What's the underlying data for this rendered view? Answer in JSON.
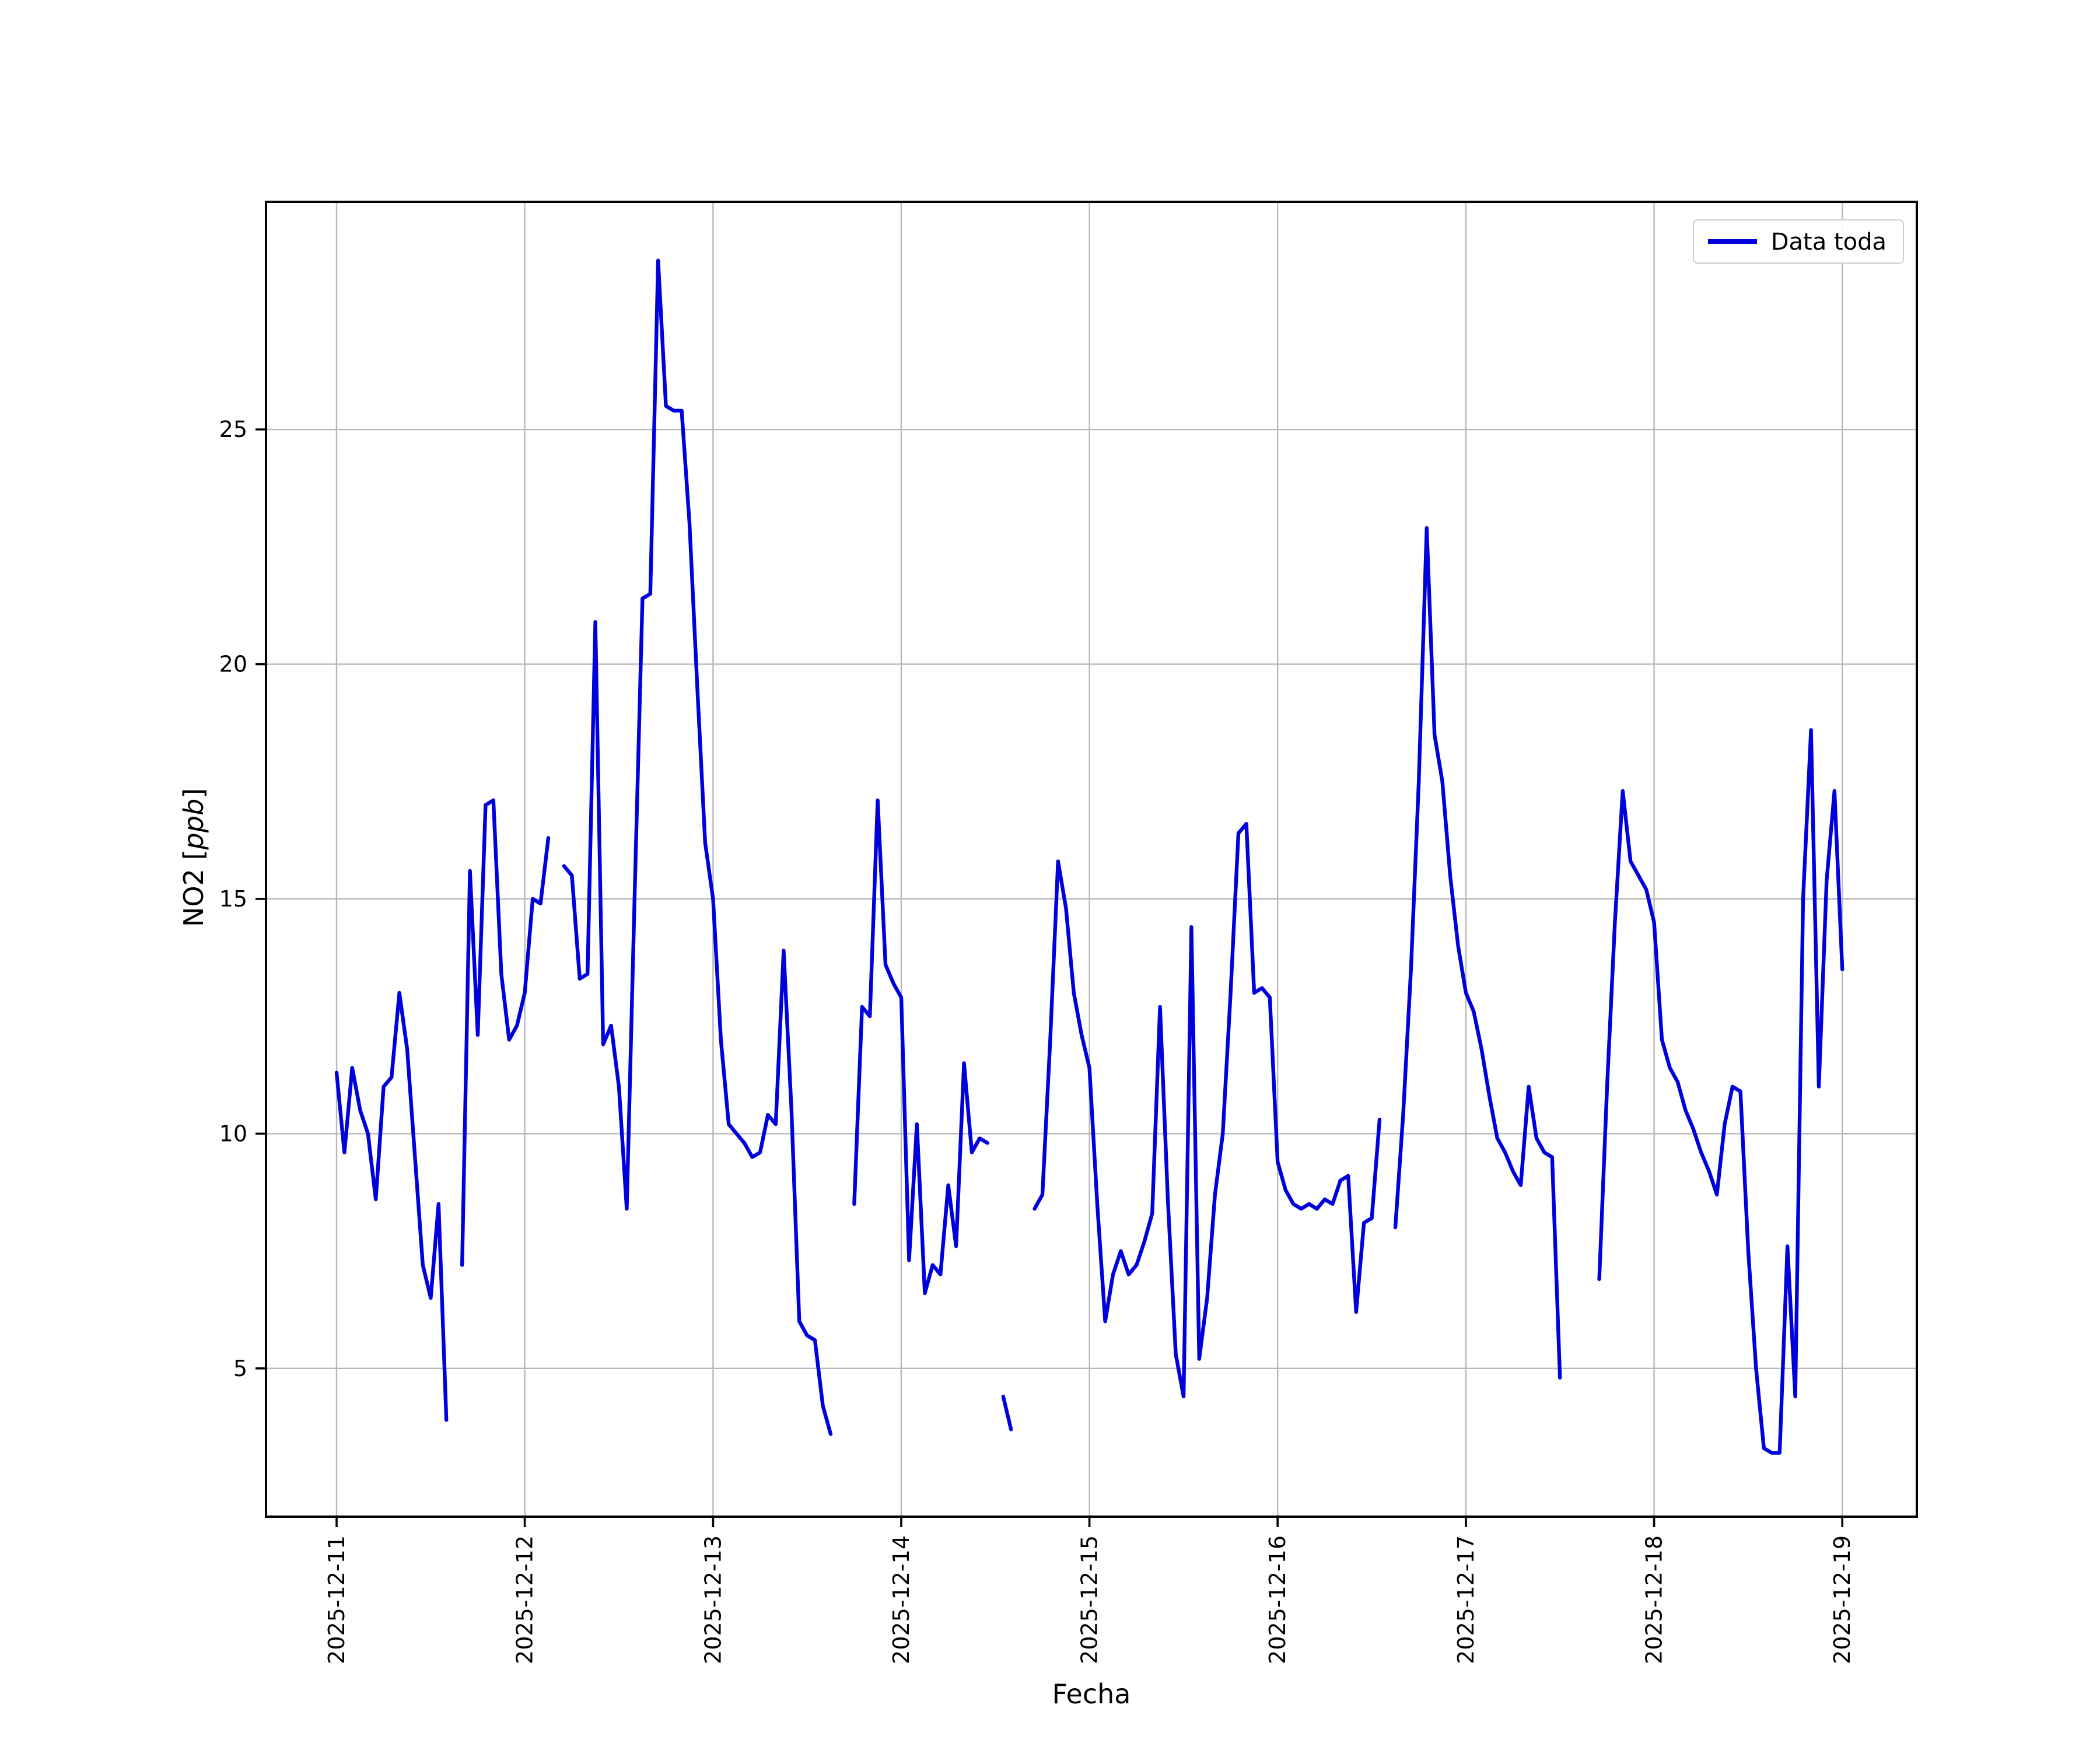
{
  "figure": {
    "xlabel": "Fecha",
    "ylabel_prefix": "NO2 [",
    "ylabel_italic": "ppb",
    "ylabel_suffix": "]",
    "legend": {
      "label": "Data toda"
    }
  },
  "chart_data": {
    "type": "line",
    "title": "",
    "xlabel": "Fecha",
    "ylabel": "NO2 [ppb]",
    "grid": true,
    "legend_position": "upper right",
    "line_color": "#0000dd",
    "grid_color": "#b8b8b8",
    "frame_color": "#000000",
    "x_start": "2025-12-11 00:00",
    "x_freq_hours": 1,
    "x_tick_hours": [
      0,
      24,
      48,
      72,
      96,
      120,
      144,
      168,
      192
    ],
    "x_tick_labels": [
      "2025-12-11",
      "2025-12-12",
      "2025-12-13",
      "2025-12-14",
      "2025-12-15",
      "2025-12-16",
      "2025-12-17",
      "2025-12-18",
      "2025-12-19"
    ],
    "yticks": [
      5,
      10,
      15,
      20,
      25
    ],
    "ylim": [
      1.84,
      29.85
    ],
    "xlim_hours": [
      -9,
      201.5
    ],
    "series": [
      {
        "name": "Data toda",
        "values": [
          11.3,
          9.6,
          11.4,
          10.5,
          10.0,
          8.6,
          11.0,
          11.2,
          13.0,
          11.8,
          9.5,
          7.2,
          6.5,
          8.5,
          3.9,
          null,
          7.2,
          15.6,
          12.1,
          17.0,
          17.1,
          13.4,
          12.0,
          12.3,
          13.0,
          15.0,
          14.9,
          16.3,
          null,
          15.7,
          15.5,
          13.3,
          13.4,
          20.9,
          11.9,
          12.3,
          11.0,
          8.4,
          15.0,
          21.4,
          21.5,
          28.6,
          25.5,
          25.4,
          25.4,
          23.0,
          19.5,
          16.2,
          15.0,
          12.0,
          10.2,
          10.0,
          9.8,
          9.5,
          9.6,
          10.4,
          10.2,
          13.9,
          10.5,
          6.0,
          5.7,
          5.6,
          4.2,
          3.6,
          null,
          null,
          8.5,
          12.7,
          12.5,
          17.1,
          13.6,
          13.2,
          12.9,
          7.3,
          10.2,
          6.6,
          7.2,
          7.0,
          8.9,
          7.6,
          11.5,
          9.6,
          9.9,
          9.8,
          null,
          4.4,
          3.7,
          null,
          null,
          8.4,
          8.7,
          12.0,
          15.8,
          14.8,
          13.0,
          12.1,
          11.4,
          8.5,
          6.0,
          7.0,
          7.5,
          7.0,
          7.2,
          7.7,
          8.3,
          12.7,
          8.6,
          5.3,
          4.4,
          14.4,
          5.2,
          6.5,
          8.7,
          10.0,
          13.0,
          16.4,
          16.6,
          13.0,
          13.1,
          12.9,
          9.4,
          8.8,
          8.5,
          8.4,
          8.5,
          8.4,
          8.6,
          8.5,
          9.0,
          9.1,
          6.2,
          8.1,
          8.2,
          10.3,
          null,
          8.0,
          10.4,
          13.5,
          17.5,
          22.9,
          18.5,
          17.5,
          15.5,
          14.0,
          13.0,
          12.6,
          11.8,
          10.8,
          9.9,
          9.6,
          9.2,
          8.9,
          11.0,
          9.9,
          9.6,
          9.5,
          4.8,
          null,
          null,
          null,
          null,
          6.9,
          11.0,
          14.5,
          17.3,
          15.8,
          15.5,
          15.2,
          14.5,
          12.0,
          11.4,
          11.1,
          10.5,
          10.1,
          9.6,
          9.2,
          8.7,
          10.2,
          11.0,
          10.9,
          7.5,
          5.0,
          3.3,
          3.2,
          3.2,
          7.6,
          4.4,
          15.0,
          18.6,
          11.0,
          15.4,
          17.3,
          13.5
        ]
      }
    ]
  }
}
